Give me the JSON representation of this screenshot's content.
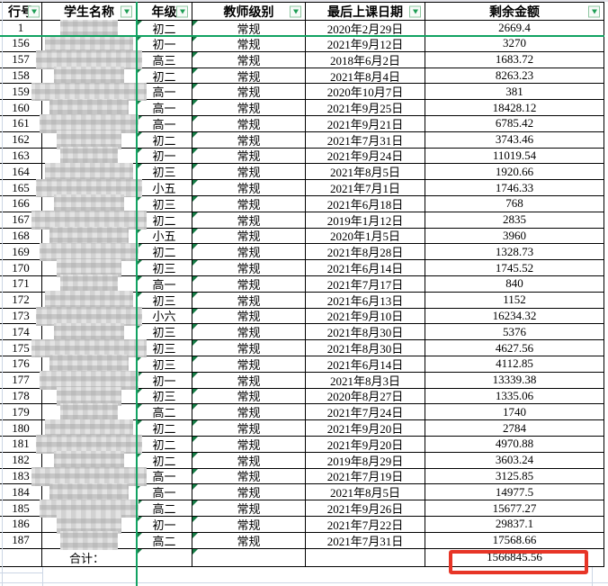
{
  "colors": {
    "accent_green": "#12a262",
    "marker_green": "#177c46",
    "filter_arrow_green": "#1f9e56",
    "red_highlight_box": "#e73527",
    "grid_light": "#ccd6e5",
    "table_border": "#000000"
  },
  "header": {
    "columns": [
      {
        "id": "num",
        "label": "行号"
      },
      {
        "id": "name",
        "label": "学生名称"
      },
      {
        "id": "grade",
        "label": "年级"
      },
      {
        "id": "level",
        "label": "教师级别"
      },
      {
        "id": "date",
        "label": "最后上课日期"
      },
      {
        "id": "amount",
        "label": "剩余金额"
      }
    ],
    "filter_icon": "filter-dropdown-arrow"
  },
  "rows": [
    {
      "num": "1",
      "grade": "初二",
      "level": "常规",
      "date": "2020年2月29日",
      "amount": "2669.4"
    },
    {
      "num": "156",
      "grade": "初一",
      "level": "常规",
      "date": "2021年9月12日",
      "amount": "3270"
    },
    {
      "num": "157",
      "grade": "高三",
      "level": "常规",
      "date": "2018年6月2日",
      "amount": "1683.72"
    },
    {
      "num": "158",
      "grade": "初二",
      "level": "常规",
      "date": "2021年8月4日",
      "amount": "8263.23"
    },
    {
      "num": "159",
      "grade": "高一",
      "level": "常规",
      "date": "2020年10月7日",
      "amount": "381"
    },
    {
      "num": "160",
      "grade": "高一",
      "level": "常规",
      "date": "2021年9月25日",
      "amount": "18428.12"
    },
    {
      "num": "161",
      "grade": "高一",
      "level": "常规",
      "date": "2021年9月21日",
      "amount": "6785.42"
    },
    {
      "num": "162",
      "grade": "初二",
      "level": "常规",
      "date": "2021年7月31日",
      "amount": "3743.46"
    },
    {
      "num": "163",
      "grade": "初一",
      "level": "常规",
      "date": "2021年9月24日",
      "amount": "11019.54"
    },
    {
      "num": "164",
      "grade": "初三",
      "level": "常规",
      "date": "2021年8月5日",
      "amount": "1920.66"
    },
    {
      "num": "165",
      "grade": "小五",
      "level": "常规",
      "date": "2021年7月1日",
      "amount": "1746.33"
    },
    {
      "num": "166",
      "grade": "初三",
      "level": "常规",
      "date": "2021年6月18日",
      "amount": "768"
    },
    {
      "num": "167",
      "grade": "初二",
      "level": "常规",
      "date": "2019年1月12日",
      "amount": "2835"
    },
    {
      "num": "168",
      "grade": "小五",
      "level": "常规",
      "date": "2020年1月5日",
      "amount": "3960"
    },
    {
      "num": "169",
      "grade": "初二",
      "level": "常规",
      "date": "2021年8月28日",
      "amount": "1328.73"
    },
    {
      "num": "170",
      "grade": "初三",
      "level": "常规",
      "date": "2021年6月14日",
      "amount": "1745.52"
    },
    {
      "num": "171",
      "grade": "高一",
      "level": "常规",
      "date": "2021年7月17日",
      "amount": "840"
    },
    {
      "num": "172",
      "grade": "初三",
      "level": "常规",
      "date": "2021年6月13日",
      "amount": "1152"
    },
    {
      "num": "173",
      "grade": "小六",
      "level": "常规",
      "date": "2021年9月10日",
      "amount": "16234.32"
    },
    {
      "num": "174",
      "grade": "初三",
      "level": "常规",
      "date": "2021年8月30日",
      "amount": "5376"
    },
    {
      "num": "175",
      "grade": "初三",
      "level": "常规",
      "date": "2021年8月30日",
      "amount": "4627.56"
    },
    {
      "num": "176",
      "grade": "初三",
      "level": "常规",
      "date": "2021年6月14日",
      "amount": "4112.85"
    },
    {
      "num": "177",
      "grade": "初一",
      "level": "常规",
      "date": "2021年8月3日",
      "amount": "13339.38"
    },
    {
      "num": "178",
      "grade": "初三",
      "level": "常规",
      "date": "2020年8月27日",
      "amount": "1335.06"
    },
    {
      "num": "179",
      "grade": "高二",
      "level": "常规",
      "date": "2021年7月24日",
      "amount": "1740"
    },
    {
      "num": "180",
      "grade": "初二",
      "level": "常规",
      "date": "2021年9月20日",
      "amount": "2784"
    },
    {
      "num": "181",
      "grade": "初二",
      "level": "常规",
      "date": "2021年9月20日",
      "amount": "4970.88"
    },
    {
      "num": "182",
      "grade": "初二",
      "level": "常规",
      "date": "2019年8月29日",
      "amount": "3603.24"
    },
    {
      "num": "183",
      "grade": "高一",
      "level": "常规",
      "date": "2021年7月19日",
      "amount": "3125.85"
    },
    {
      "num": "184",
      "grade": "高一",
      "level": "常规",
      "date": "2021年8月5日",
      "amount": "14977.5"
    },
    {
      "num": "185",
      "grade": "高二",
      "level": "常规",
      "date": "2021年9月26日",
      "amount": "15677.27"
    },
    {
      "num": "186",
      "grade": "初一",
      "level": "常规",
      "date": "2021年7月22日",
      "amount": "29837.1"
    },
    {
      "num": "187",
      "grade": "高二",
      "level": "常规",
      "date": "2021年7月31日",
      "amount": "17568.66"
    }
  ],
  "total": {
    "label": "合计：",
    "amount": "1566845.56"
  },
  "annotations": {
    "hidden_rows_between": [
      "1",
      "156"
    ],
    "student_names_redacted": true,
    "highlighted_cell": "total_amount"
  }
}
